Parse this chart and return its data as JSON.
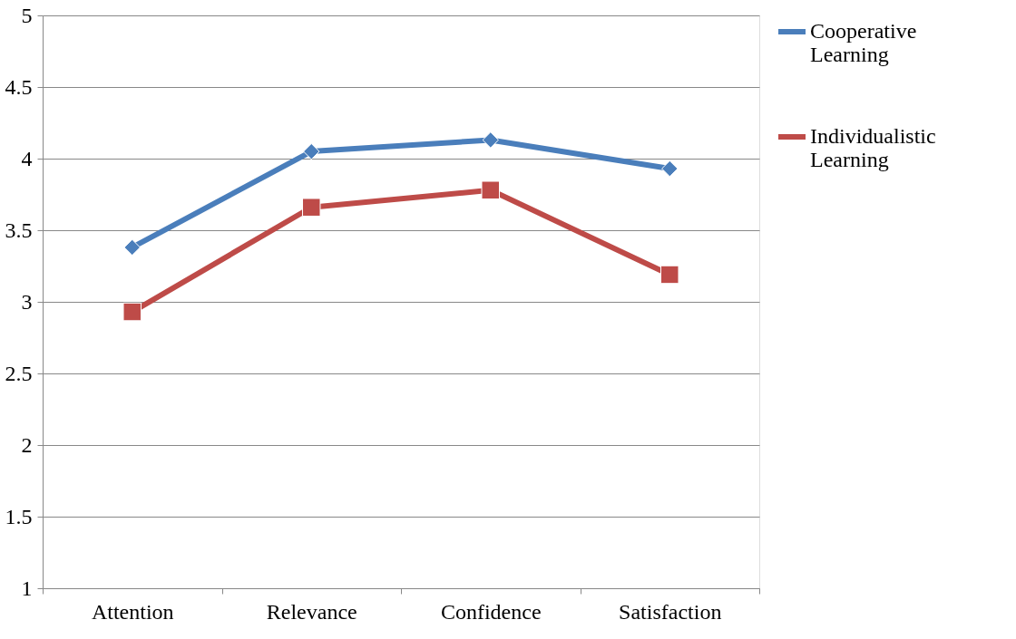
{
  "chart_data": {
    "type": "line",
    "categories": [
      "Attention",
      "Relevance",
      "Confidence",
      "Satisfaction"
    ],
    "series": [
      {
        "name": "Cooperative Learning",
        "color": "#4a7ebb",
        "marker": "diamond",
        "values": [
          3.38,
          4.05,
          4.13,
          3.93
        ]
      },
      {
        "name": "Individualistic Learning",
        "color": "#be4b48",
        "marker": "square",
        "values": [
          2.93,
          3.66,
          3.78,
          3.19
        ]
      }
    ],
    "ylim": [
      1,
      5
    ],
    "yticks": [
      1,
      1.5,
      2,
      2.5,
      3,
      3.5,
      4,
      4.5,
      5
    ],
    "grid": "y",
    "legend": "right"
  }
}
